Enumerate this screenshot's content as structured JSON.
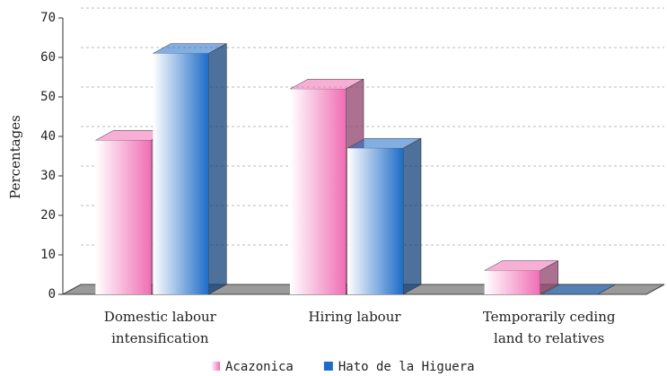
{
  "chart_data": {
    "type": "bar3d",
    "y_label": "Percentages",
    "categories": [
      [
        "Domestic labour",
        "intensification"
      ],
      [
        "Hiring labour"
      ],
      [
        "Temporarily ceding",
        "land to relatives"
      ]
    ],
    "series": [
      {
        "name": "Acazonica",
        "color": "#f06eb4",
        "values": [
          39,
          52,
          6
        ]
      },
      {
        "name": "Hato de la Higuera",
        "color": "#1e6cc8",
        "values": [
          61,
          37,
          0
        ]
      }
    ],
    "ylim": [
      0,
      70
    ],
    "yticks": [
      0,
      10,
      20,
      30,
      40,
      50,
      60,
      70
    ],
    "grid": true,
    "legend": "bottom"
  }
}
